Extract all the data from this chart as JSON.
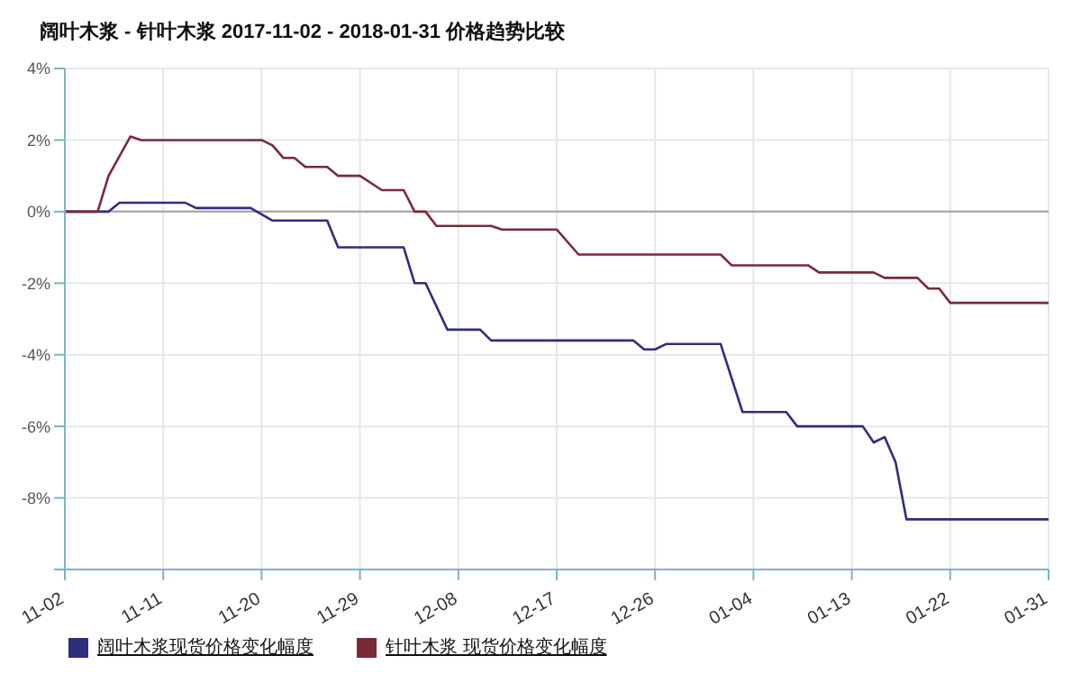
{
  "chart_data": {
    "type": "line",
    "title": "阔叶木浆 - 针叶木浆 2017-11-02 - 2018-01-31 价格趋势比较",
    "xlim": [
      "2017-11-02",
      "2018-01-31"
    ],
    "xticks": [
      {
        "value": "2017-11-02",
        "label": "11-02"
      },
      {
        "value": "2017-11-11",
        "label": "11-11"
      },
      {
        "value": "2017-11-20",
        "label": "11-20"
      },
      {
        "value": "2017-11-29",
        "label": "11-29"
      },
      {
        "value": "2017-12-08",
        "label": "12-08"
      },
      {
        "value": "2017-12-17",
        "label": "12-17"
      },
      {
        "value": "2017-12-26",
        "label": "12-26"
      },
      {
        "value": "2018-01-04",
        "label": "01-04"
      },
      {
        "value": "2018-01-13",
        "label": "01-13"
      },
      {
        "value": "2018-01-22",
        "label": "01-22"
      },
      {
        "value": "2018-01-31",
        "label": "01-31"
      }
    ],
    "ylim": [
      -10,
      4
    ],
    "yticks": [
      {
        "value": 4,
        "label": "4%"
      },
      {
        "value": 2,
        "label": "2%"
      },
      {
        "value": 0,
        "label": "0%"
      },
      {
        "value": -2,
        "label": "-2%"
      },
      {
        "value": -4,
        "label": "-4%"
      },
      {
        "value": -6,
        "label": "-6%"
      },
      {
        "value": -8,
        "label": "-8%"
      },
      {
        "value": -10,
        "label": null
      }
    ],
    "grid": true,
    "legend": "bottom",
    "marker": "none",
    "line_style": "solid",
    "ref_lines": [
      {
        "axis": "y",
        "value": 0,
        "color": "#a0a0a0"
      }
    ],
    "series": [
      {
        "name": "阔叶木浆现货价格变化幅度",
        "color": "#2e2e7c",
        "x": [
          "2017-11-02",
          "2017-11-06",
          "2017-11-07",
          "2017-11-13",
          "2017-11-14",
          "2017-11-19",
          "2017-11-21",
          "2017-11-26",
          "2017-11-27",
          "2017-12-03",
          "2017-12-04",
          "2017-12-05",
          "2017-12-07",
          "2017-12-10",
          "2017-12-11",
          "2017-12-24",
          "2017-12-25",
          "2017-12-26",
          "2017-12-27",
          "2018-01-01",
          "2018-01-03",
          "2018-01-07",
          "2018-01-08",
          "2018-01-14",
          "2018-01-15",
          "2018-01-16",
          "2018-01-17",
          "2018-01-18",
          "2018-01-31"
        ],
        "values": [
          0,
          0,
          0.25,
          0.25,
          0.1,
          0.1,
          -0.25,
          -0.25,
          -1.0,
          -1.0,
          -2.0,
          -2.0,
          -3.3,
          -3.3,
          -3.6,
          -3.6,
          -3.85,
          -3.85,
          -3.7,
          -3.7,
          -5.6,
          -5.6,
          -6.0,
          -6.0,
          -6.45,
          -6.3,
          -7.0,
          -8.6,
          -8.6
        ]
      },
      {
        "name": "针叶木浆 现货价格变化幅度",
        "color": "#7a2a36",
        "x": [
          "2017-11-02",
          "2017-11-05",
          "2017-11-06",
          "2017-11-08",
          "2017-11-09",
          "2017-11-20",
          "2017-11-21",
          "2017-11-22",
          "2017-11-23",
          "2017-11-24",
          "2017-11-26",
          "2017-11-27",
          "2017-11-29",
          "2017-12-01",
          "2017-12-03",
          "2017-12-04",
          "2017-12-05",
          "2017-12-06",
          "2017-12-11",
          "2017-12-12",
          "2017-12-17",
          "2017-12-19",
          "2018-01-01",
          "2018-01-02",
          "2018-01-09",
          "2018-01-10",
          "2018-01-15",
          "2018-01-16",
          "2018-01-19",
          "2018-01-20",
          "2018-01-21",
          "2018-01-22",
          "2018-01-31"
        ],
        "values": [
          0,
          0,
          1.0,
          2.1,
          2.0,
          2.0,
          1.85,
          1.5,
          1.5,
          1.25,
          1.25,
          1.0,
          1.0,
          0.6,
          0.6,
          0,
          0,
          -0.4,
          -0.4,
          -0.5,
          -0.5,
          -1.2,
          -1.2,
          -1.5,
          -1.5,
          -1.7,
          -1.7,
          -1.85,
          -1.85,
          -2.15,
          -2.15,
          -2.55,
          -2.55
        ]
      }
    ]
  }
}
